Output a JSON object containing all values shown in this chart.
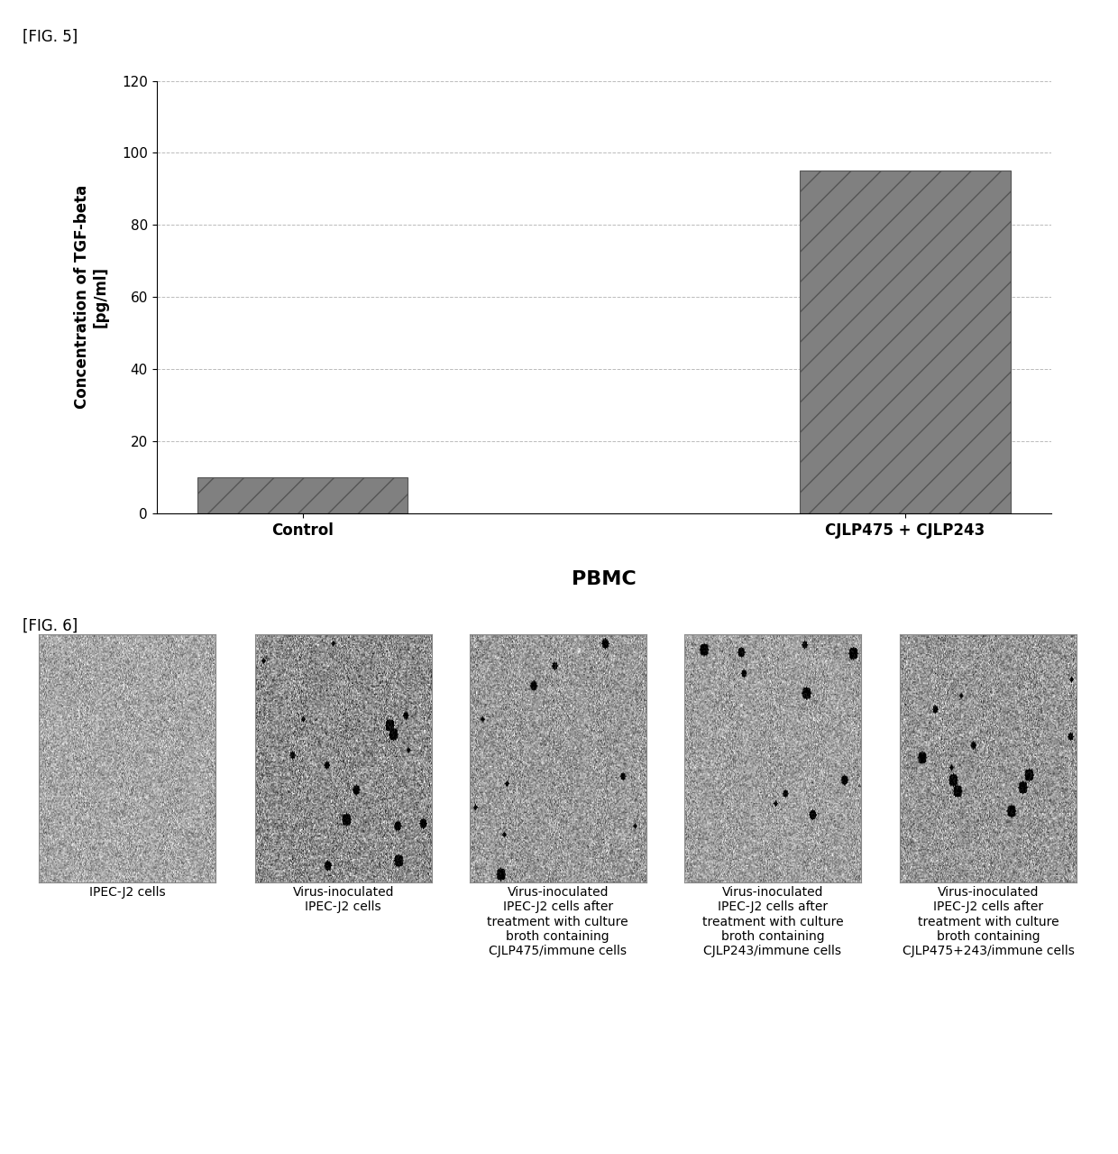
{
  "fig5_label": "[FIG. 5]",
  "fig6_label": "[FIG. 6]",
  "bar_categories": [
    "Control",
    "CJLP475 + CJLP243"
  ],
  "bar_values": [
    10,
    95
  ],
  "bar_color": "#808080",
  "ylabel": "Concentration of TGF-beta\n[pg/ml]",
  "ylim": [
    0,
    120
  ],
  "yticks": [
    0,
    20,
    40,
    60,
    80,
    100,
    120
  ],
  "xlabel": "PBMC",
  "grid_color": "#aaaaaa",
  "grid_style": "--",
  "background_color": "#ffffff",
  "fig6_captions": [
    "IPEC-J2 cells",
    "Virus-inoculated\nIPEC-J2 cells",
    "Virus-inoculated\nIPEC-J2 cells after\ntreatment with culture\nbroth containing\nCJLP475/immune cells",
    "Virus-inoculated\nIPEC-J2 cells after\ntreatment with culture\nbroth containing\nCJLP243/immune cells",
    "Virus-inoculated\nIPEC-J2 cells after\ntreatment with culture\nbroth containing\nCJLP475+243/immune cells"
  ],
  "label_fontsize": 12,
  "tick_fontsize": 11,
  "xlabel_fontsize": 16,
  "caption_fontsize": 10
}
